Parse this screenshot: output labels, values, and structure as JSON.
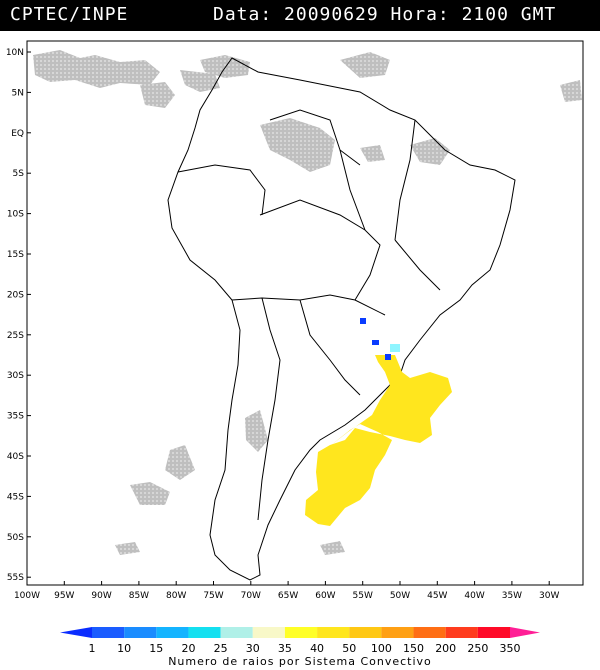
{
  "header": {
    "agency": "CPTEC/INPE",
    "date_time": "Data: 20090629 Hora: 2100 GMT"
  },
  "map": {
    "lon_range": [
      -100,
      -25
    ],
    "lat_range": [
      -56,
      12
    ],
    "lat_ticks": [
      "10N",
      "5N",
      "EQ",
      "5S",
      "10S",
      "15S",
      "20S",
      "25S",
      "30S",
      "35S",
      "40S",
      "45S",
      "50S",
      "55S"
    ],
    "lon_ticks": [
      "100W",
      "95W",
      "90W",
      "85W",
      "80W",
      "75W",
      "70W",
      "65W",
      "60W",
      "55W",
      "50W",
      "45W",
      "40W",
      "35W",
      "30W"
    ],
    "colors": {
      "convective_systems": "#ffe61e",
      "cloud_cover": "#b4b4b4",
      "blue_cells": "#0a3cff",
      "cyan_cells": "#8ff5ff",
      "coastlines": "#000000"
    }
  },
  "colorbar": {
    "labels": [
      "1",
      "10",
      "15",
      "20",
      "25",
      "30",
      "35",
      "40",
      "50",
      "100",
      "150",
      "200",
      "250",
      "350"
    ],
    "colors": [
      "#0a2cff",
      "#1a5cff",
      "#1a8cff",
      "#14b4ff",
      "#14e0f0",
      "#b0f0e8",
      "#f8f8c8",
      "#ffff28",
      "#ffe61e",
      "#ffc814",
      "#ffa014",
      "#ff6e14",
      "#ff3c1e",
      "#ff0a28",
      "#ff1e96"
    ],
    "title": "Numero de raios por Sistema Convectivo"
  }
}
